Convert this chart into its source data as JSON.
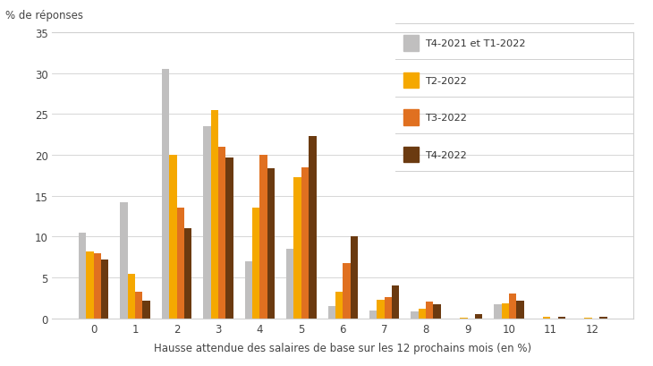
{
  "categories": [
    0,
    1,
    2,
    3,
    4,
    5,
    6,
    7,
    8,
    9,
    10,
    11,
    12
  ],
  "series": {
    "T4-2021 et T1-2022": [
      10.5,
      14.2,
      30.5,
      23.5,
      7.0,
      8.5,
      1.5,
      1.0,
      0.8,
      0.0,
      1.7,
      0.0,
      0.0
    ],
    "T2-2022": [
      8.2,
      5.4,
      20.0,
      25.5,
      13.5,
      17.3,
      3.2,
      2.3,
      1.2,
      0.1,
      1.8,
      0.2,
      0.1
    ],
    "T3-2022": [
      8.0,
      3.2,
      13.5,
      21.0,
      20.0,
      18.5,
      6.8,
      2.6,
      2.0,
      0.0,
      3.0,
      0.0,
      0.0
    ],
    "T4-2022": [
      7.2,
      2.2,
      11.0,
      19.7,
      18.4,
      22.3,
      10.0,
      4.0,
      1.7,
      0.5,
      2.2,
      0.2,
      0.2
    ]
  },
  "colors": {
    "T4-2021 et T1-2022": "#c0bfbf",
    "T2-2022": "#f5a800",
    "T3-2022": "#e07020",
    "T4-2022": "#6b3a10"
  },
  "ylabel": "% de réponses",
  "xlabel": "Hausse attendue des salaires de base sur les 12 prochains mois (en %)",
  "ylim": [
    0,
    35
  ],
  "yticks": [
    0,
    5,
    10,
    15,
    20,
    25,
    30,
    35
  ],
  "bar_width": 0.18,
  "background_color": "#ffffff",
  "grid_color": "#d0d0d0",
  "border_color": "#d0d0d0"
}
